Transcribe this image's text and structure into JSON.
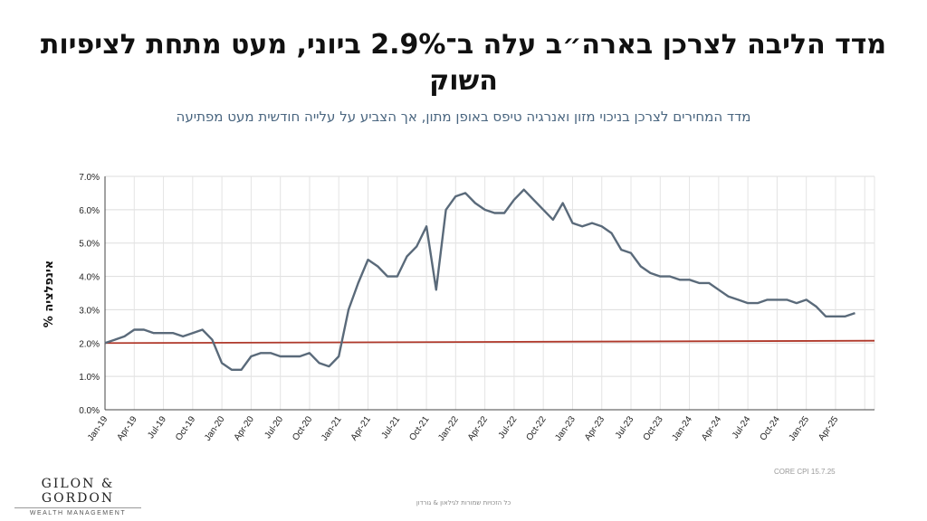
{
  "header": {
    "title": "מדד הליבה לצרכן בארה״ב עלה ב־2.9% ביוני, מעט מתחת לציפיות השוק",
    "subtitle": "מדד המחירים לצרכן בניכוי מזון ואנרגיה טיפס באופן מתון, אך הצביע על עלייה חודשית מעט מפתיעה"
  },
  "chart_data": {
    "type": "line",
    "title": "",
    "xlabel": "",
    "ylabel": "% אינפלציה",
    "ylim": [
      0,
      7
    ],
    "yticks": [
      "0.0%",
      "1.0%",
      "2.0%",
      "3.0%",
      "4.0%",
      "5.0%",
      "6.0%",
      "7.0%"
    ],
    "x_tick_labels": [
      "Jan-19",
      "Apr-19",
      "Jul-19",
      "Oct-19",
      "Jan-20",
      "Apr-20",
      "Jul-20",
      "Oct-20",
      "Jan-21",
      "Apr-21",
      "Jul-21",
      "Oct-21",
      "Jan-22",
      "Apr-22",
      "Jul-22",
      "Oct-22",
      "Jan-23",
      "Apr-23",
      "Jul-23",
      "Oct-23",
      "Jan-24",
      "Apr-24",
      "Jul-24",
      "Oct-24",
      "Jan-25",
      "Apr-25"
    ],
    "x_start": "Jan-19",
    "x_end": "Jun-25",
    "grid": true,
    "series": [
      {
        "color": "#5a6a7a",
        "values": [
          2.0,
          2.1,
          2.2,
          2.4,
          2.4,
          2.3,
          2.3,
          2.3,
          2.2,
          2.3,
          2.4,
          2.1,
          1.4,
          1.2,
          1.2,
          1.6,
          1.7,
          1.7,
          1.6,
          1.6,
          1.6,
          1.7,
          1.4,
          1.3,
          1.6,
          3.0,
          3.8,
          4.5,
          4.3,
          4.0,
          4.0,
          4.6,
          4.9,
          5.5,
          3.6,
          6.0,
          6.4,
          6.5,
          6.2,
          6.0,
          5.9,
          5.9,
          6.3,
          6.6,
          6.3,
          6.0,
          5.7,
          6.2,
          5.6,
          5.5,
          5.6,
          5.5,
          5.3,
          4.8,
          4.7,
          4.3,
          4.1,
          4.0,
          4.0,
          3.9,
          3.9,
          3.8,
          3.8,
          3.6,
          3.4,
          3.3,
          3.2,
          3.2,
          3.3,
          3.3,
          3.3,
          3.2,
          3.3,
          3.1,
          2.8,
          2.8,
          2.8,
          2.9
        ]
      },
      {
        "color": "#b0392b",
        "values": [
          2.0,
          2.07
        ]
      }
    ]
  },
  "branding": {
    "logo": "GILON & GORDON",
    "logo_sub": "WEALTH MANAGEMENT"
  },
  "source": "CORE CPI  15.7.25",
  "footer": "כל הזכויות שמורות לגילאון & גורדון"
}
